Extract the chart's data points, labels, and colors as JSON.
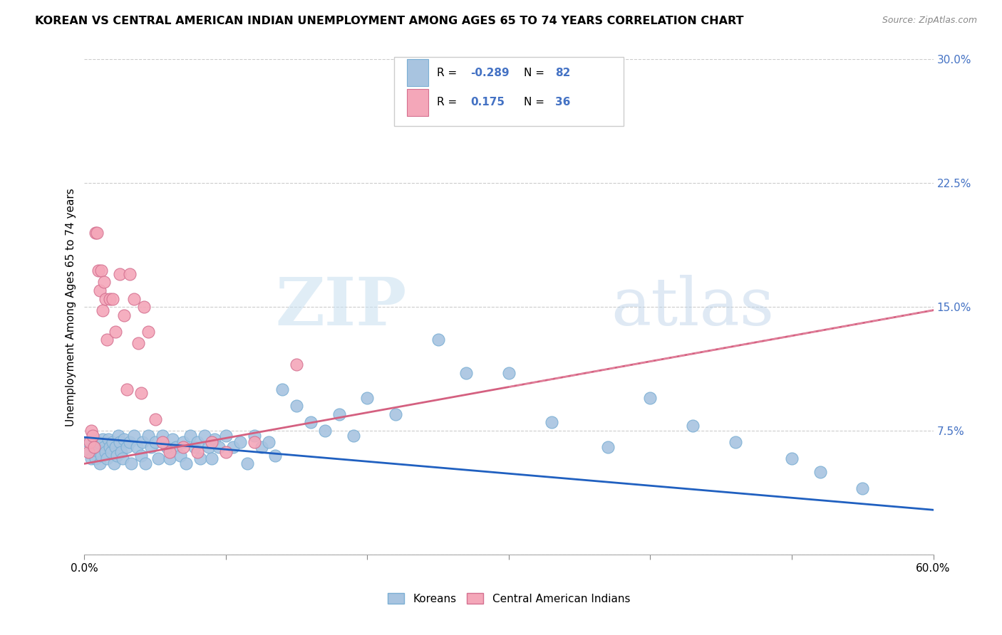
{
  "title": "KOREAN VS CENTRAL AMERICAN INDIAN UNEMPLOYMENT AMONG AGES 65 TO 74 YEARS CORRELATION CHART",
  "source": "Source: ZipAtlas.com",
  "ylabel": "Unemployment Among Ages 65 to 74 years",
  "xlim": [
    0.0,
    0.6
  ],
  "ylim": [
    0.0,
    0.3
  ],
  "xticks": [
    0.0,
    0.1,
    0.2,
    0.3,
    0.4,
    0.5,
    0.6
  ],
  "xticklabels": [
    "0.0%",
    "",
    "",
    "",
    "",
    "",
    "60.0%"
  ],
  "yticks": [
    0.0,
    0.075,
    0.15,
    0.225,
    0.3
  ],
  "yticklabels": [
    "",
    "7.5%",
    "15.0%",
    "22.5%",
    "30.0%"
  ],
  "korean_color": "#a8c4e0",
  "caindian_color": "#f4a7b9",
  "korean_line_color": "#2060c0",
  "caindian_line_color": "#d46080",
  "caindian_line_color2": "#e890a8",
  "watermark_zip": "ZIP",
  "watermark_atlas": "atlas",
  "legend_koreans": "Koreans",
  "legend_caindians": "Central American Indians",
  "korean_line_x0": 0.0,
  "korean_line_y0": 0.071,
  "korean_line_x1": 0.6,
  "korean_line_y1": 0.027,
  "caindian_line_x0": 0.0,
  "caindian_line_y0": 0.055,
  "caindian_line_x1": 0.6,
  "caindian_line_y1": 0.148,
  "korean_x": [
    0.003,
    0.004,
    0.005,
    0.006,
    0.007,
    0.008,
    0.009,
    0.01,
    0.011,
    0.012,
    0.013,
    0.014,
    0.015,
    0.016,
    0.017,
    0.018,
    0.019,
    0.02,
    0.021,
    0.022,
    0.023,
    0.024,
    0.025,
    0.026,
    0.027,
    0.028,
    0.03,
    0.032,
    0.033,
    0.035,
    0.037,
    0.04,
    0.041,
    0.043,
    0.045,
    0.047,
    0.05,
    0.052,
    0.055,
    0.058,
    0.06,
    0.062,
    0.065,
    0.068,
    0.07,
    0.072,
    0.075,
    0.078,
    0.08,
    0.082,
    0.085,
    0.088,
    0.09,
    0.092,
    0.095,
    0.1,
    0.105,
    0.11,
    0.115,
    0.12,
    0.125,
    0.13,
    0.135,
    0.14,
    0.15,
    0.16,
    0.17,
    0.18,
    0.19,
    0.2,
    0.22,
    0.25,
    0.27,
    0.3,
    0.33,
    0.37,
    0.4,
    0.43,
    0.46,
    0.5,
    0.52,
    0.55
  ],
  "korean_y": [
    0.068,
    0.062,
    0.058,
    0.065,
    0.07,
    0.058,
    0.063,
    0.068,
    0.055,
    0.06,
    0.07,
    0.065,
    0.062,
    0.058,
    0.07,
    0.065,
    0.062,
    0.068,
    0.055,
    0.065,
    0.06,
    0.072,
    0.068,
    0.062,
    0.058,
    0.07,
    0.065,
    0.068,
    0.055,
    0.072,
    0.065,
    0.06,
    0.068,
    0.055,
    0.072,
    0.065,
    0.068,
    0.058,
    0.072,
    0.065,
    0.058,
    0.07,
    0.065,
    0.06,
    0.068,
    0.055,
    0.072,
    0.065,
    0.068,
    0.058,
    0.072,
    0.065,
    0.058,
    0.07,
    0.065,
    0.072,
    0.065,
    0.068,
    0.055,
    0.072,
    0.065,
    0.068,
    0.06,
    0.1,
    0.09,
    0.08,
    0.075,
    0.085,
    0.072,
    0.095,
    0.085,
    0.13,
    0.11,
    0.11,
    0.08,
    0.065,
    0.095,
    0.078,
    0.068,
    0.058,
    0.05,
    0.04
  ],
  "caindian_x": [
    0.003,
    0.004,
    0.005,
    0.006,
    0.007,
    0.008,
    0.009,
    0.01,
    0.011,
    0.012,
    0.013,
    0.014,
    0.015,
    0.016,
    0.018,
    0.02,
    0.022,
    0.025,
    0.028,
    0.03,
    0.032,
    0.035,
    0.038,
    0.04,
    0.042,
    0.045,
    0.05,
    0.055,
    0.06,
    0.07,
    0.08,
    0.09,
    0.1,
    0.12,
    0.15,
    0.28
  ],
  "caindian_y": [
    0.062,
    0.068,
    0.075,
    0.072,
    0.065,
    0.195,
    0.195,
    0.172,
    0.16,
    0.172,
    0.148,
    0.165,
    0.155,
    0.13,
    0.155,
    0.155,
    0.135,
    0.17,
    0.145,
    0.1,
    0.17,
    0.155,
    0.128,
    0.098,
    0.15,
    0.135,
    0.082,
    0.068,
    0.062,
    0.065,
    0.062,
    0.068,
    0.062,
    0.068,
    0.115,
    0.285
  ]
}
